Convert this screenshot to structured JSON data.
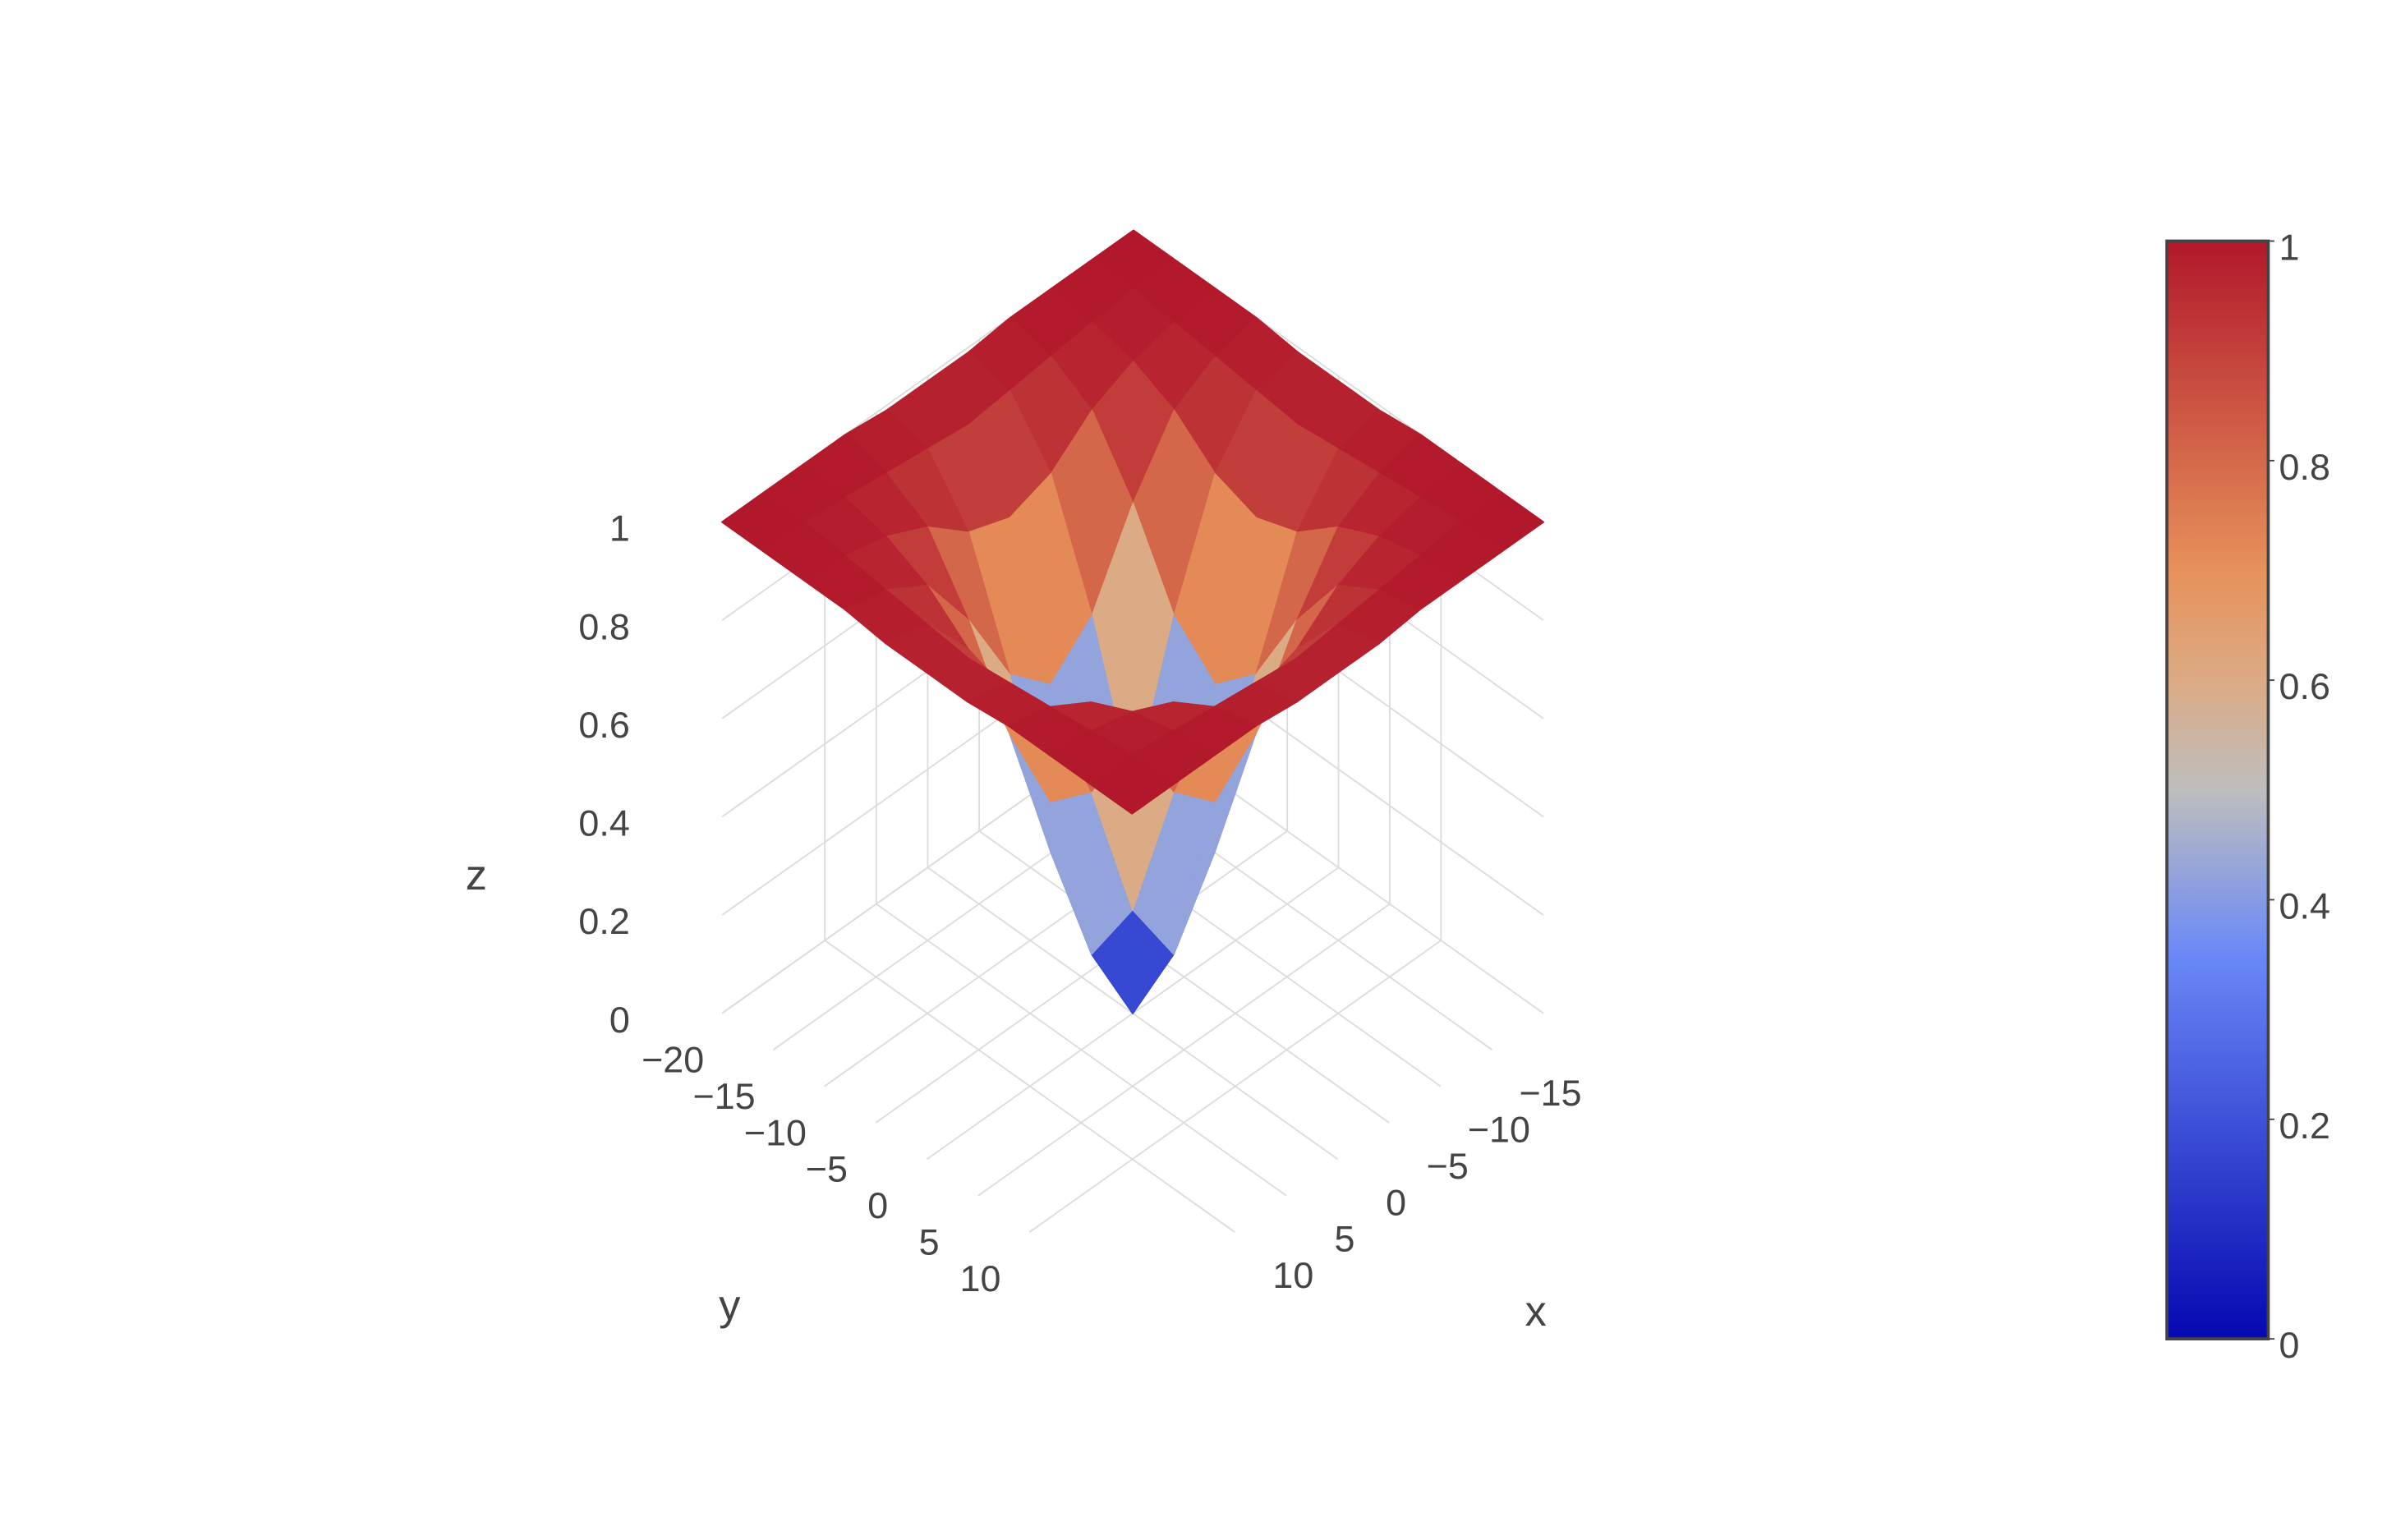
{
  "chart_data": {
    "type": "surface",
    "x_label": "x",
    "y_label": "y",
    "z_label": "z",
    "x": [
      -20,
      -16,
      -12,
      -8,
      -4,
      0,
      4,
      8,
      12,
      16,
      20
    ],
    "y": [
      -20,
      -16,
      -12,
      -8,
      -4,
      0,
      4,
      8,
      12,
      16,
      20
    ],
    "z": [
      [
        1,
        1,
        1,
        1,
        0.99,
        0.99,
        0.99,
        1,
        1,
        1,
        1
      ],
      [
        1,
        1,
        0.99,
        0.98,
        0.97,
        0.96,
        0.97,
        0.98,
        0.99,
        1,
        1
      ],
      [
        1,
        0.99,
        0.97,
        0.93,
        0.86,
        0.83,
        0.86,
        0.93,
        0.97,
        0.99,
        1
      ],
      [
        1,
        0.98,
        0.93,
        0.8,
        0.63,
        0.55,
        0.63,
        0.8,
        0.93,
        0.98,
        1
      ],
      [
        0.99,
        0.97,
        0.86,
        0.63,
        0.33,
        0.18,
        0.33,
        0.63,
        0.86,
        0.97,
        0.99
      ],
      [
        0.99,
        0.96,
        0.83,
        0.55,
        0.18,
        0,
        0.18,
        0.55,
        0.83,
        0.96,
        0.99
      ],
      [
        0.99,
        0.97,
        0.86,
        0.63,
        0.33,
        0.18,
        0.33,
        0.63,
        0.86,
        0.97,
        0.99
      ],
      [
        1,
        0.98,
        0.93,
        0.8,
        0.63,
        0.55,
        0.63,
        0.8,
        0.93,
        0.98,
        1
      ],
      [
        1,
        0.99,
        0.97,
        0.93,
        0.86,
        0.83,
        0.86,
        0.93,
        0.97,
        0.99,
        1
      ],
      [
        1,
        1,
        0.99,
        0.98,
        0.97,
        0.96,
        0.97,
        0.98,
        0.99,
        1,
        1
      ],
      [
        1,
        1,
        1,
        1,
        0.99,
        0.99,
        0.99,
        1,
        1,
        1,
        1
      ]
    ],
    "xlim": [
      -20,
      20
    ],
    "ylim": [
      -20,
      20
    ],
    "zlim": [
      0,
      1
    ],
    "xticks": [
      {
        "value": -15,
        "label": "−15"
      },
      {
        "value": -10,
        "label": "−10"
      },
      {
        "value": -5,
        "label": "−5"
      },
      0,
      5,
      10
    ],
    "yticks": [
      {
        "value": -20,
        "label": "−20"
      },
      {
        "value": -15,
        "label": "−15"
      },
      {
        "value": -10,
        "label": "−10"
      },
      {
        "value": -5,
        "label": "−5"
      },
      0,
      5,
      10
    ],
    "zticks": [
      0,
      0.2,
      0.4,
      0.6,
      0.8,
      1
    ],
    "colorscale": [
      [
        0,
        "#0508b0"
      ],
      [
        0.35,
        "#6a89f7"
      ],
      [
        0.5,
        "#bebebe"
      ],
      [
        0.6,
        "#dcaa84"
      ],
      [
        0.7,
        "#e6915a"
      ],
      [
        1,
        "#b2182b"
      ]
    ],
    "colorbar_lim": [
      0,
      1
    ],
    "colorbar_ticks": [
      0,
      0.2,
      0.4,
      0.6,
      0.8,
      1
    ]
  }
}
